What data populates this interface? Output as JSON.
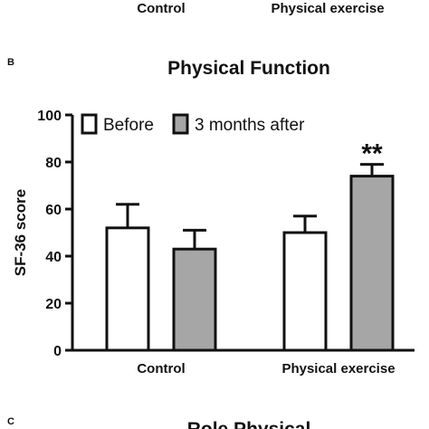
{
  "top_fragment": {
    "categories": [
      "Control",
      "Physical exercise"
    ]
  },
  "panel_b": {
    "letter": "B",
    "chart_data": {
      "type": "bar",
      "title": "Physical Function",
      "ylabel": "SF-36 score",
      "xlabel": "",
      "ylim": [
        0,
        100
      ],
      "yticks": [
        0,
        20,
        40,
        60,
        80,
        100
      ],
      "categories": [
        "Control",
        "Physical exercise"
      ],
      "series": [
        {
          "name": "Before",
          "values": [
            52,
            50
          ],
          "errors": [
            10,
            7
          ],
          "fill": "#ffffff"
        },
        {
          "name": "3 months after",
          "values": [
            43,
            74
          ],
          "errors": [
            8,
            5
          ],
          "fill": "#a6a6a6"
        }
      ],
      "annotations": [
        {
          "category_index": 1,
          "series_index": 1,
          "text": "**"
        }
      ],
      "legend_position": "top-left",
      "grid": false
    }
  },
  "bottom_fragment": {
    "letter": "C",
    "title": "Role Physical"
  }
}
